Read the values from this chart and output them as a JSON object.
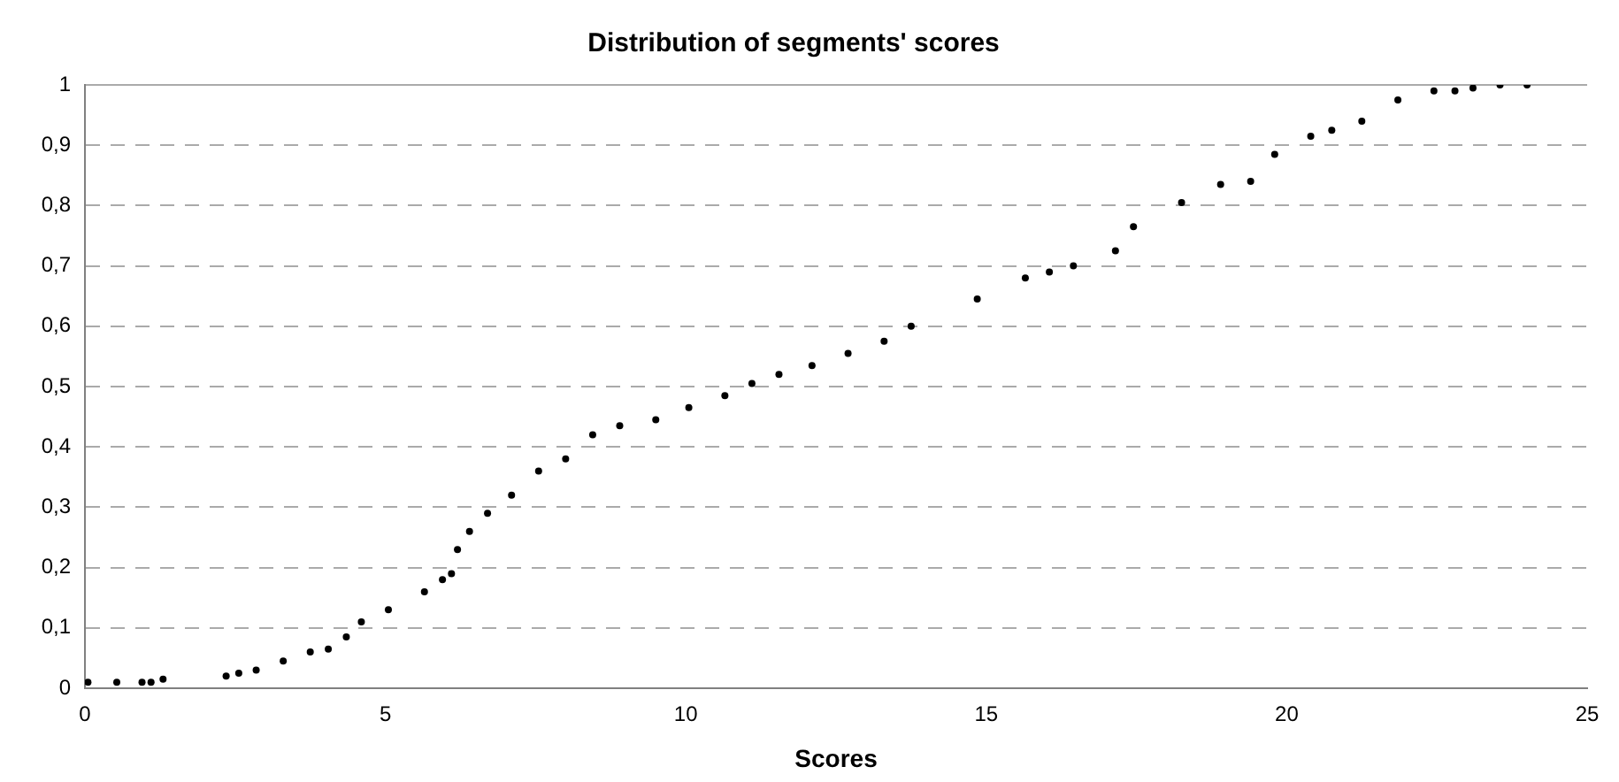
{
  "chart_data": {
    "type": "scatter",
    "title": "Distribution of segments' scores",
    "xlabel": "Scores",
    "series": [
      {
        "color": "#000000",
        "x": [
          0.05,
          0.53,
          0.95,
          1.1,
          1.3,
          2.35,
          2.56,
          2.85,
          3.3,
          3.75,
          4.05,
          4.35,
          4.6,
          5.05,
          5.65,
          5.95,
          6.1,
          6.2,
          6.4,
          6.7,
          7.1,
          7.55,
          8.0,
          8.45,
          8.9,
          9.5,
          10.05,
          10.65,
          11.1,
          11.55,
          12.1,
          12.7,
          13.3,
          13.75,
          14.85,
          15.65,
          16.05,
          16.45,
          17.15,
          17.45,
          18.25,
          18.9,
          19.4,
          19.8,
          20.4,
          20.75,
          21.25,
          21.85,
          22.45,
          22.8,
          23.1,
          23.55,
          24.0
        ],
        "values": [
          0.01,
          0.01,
          0.01,
          0.01,
          0.015,
          0.02,
          0.025,
          0.03,
          0.045,
          0.06,
          0.065,
          0.085,
          0.11,
          0.13,
          0.16,
          0.18,
          0.19,
          0.23,
          0.26,
          0.29,
          0.32,
          0.36,
          0.38,
          0.42,
          0.435,
          0.445,
          0.465,
          0.485,
          0.505,
          0.52,
          0.535,
          0.555,
          0.575,
          0.6,
          0.645,
          0.68,
          0.69,
          0.7,
          0.725,
          0.765,
          0.805,
          0.835,
          0.84,
          0.885,
          0.915,
          0.925,
          0.94,
          0.975,
          0.99,
          0.99,
          0.995,
          1,
          1
        ]
      }
    ],
    "xlim": [
      0,
      25
    ],
    "xticks": [
      0,
      5,
      10,
      15,
      20,
      25
    ],
    "ylim": [
      0,
      1
    ],
    "yticks": [
      0,
      {
        "value": 0.1,
        "label": "0,1"
      },
      {
        "value": 0.2,
        "label": "0,2"
      },
      {
        "value": 0.3,
        "label": "0,3"
      },
      {
        "value": 0.4,
        "label": "0,4"
      },
      {
        "value": 0.5,
        "label": "0,5"
      },
      {
        "value": 0.6,
        "label": "0,6"
      },
      {
        "value": 0.7,
        "label": "0,7"
      },
      {
        "value": 0.8,
        "label": "0,8"
      },
      {
        "value": 0.9,
        "label": "0,9"
      },
      1
    ],
    "grid": "y",
    "legend": false,
    "marker": "circle"
  }
}
